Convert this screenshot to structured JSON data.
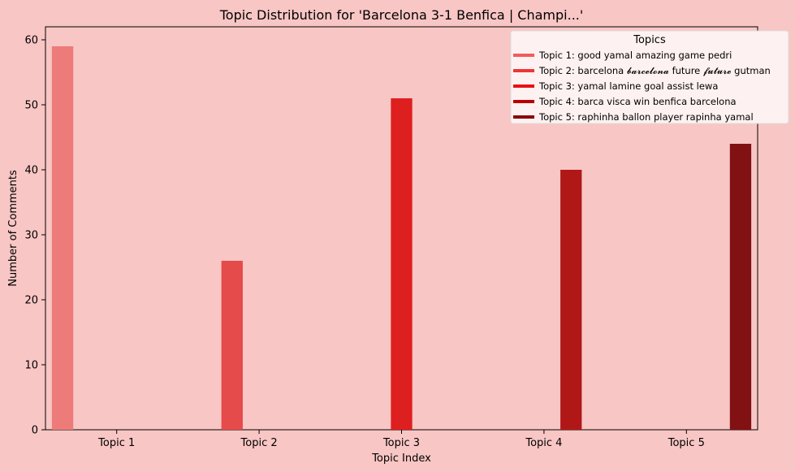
{
  "chart_data": {
    "type": "bar",
    "title": "Topic Distribution for 'Barcelona 3-1 Benfica | Champi...'",
    "xlabel": "Topic Index",
    "ylabel": "Number of Comments",
    "categories": [
      "Topic 1",
      "Topic 2",
      "Topic 3",
      "Topic 4",
      "Topic 5"
    ],
    "values": [
      59,
      26,
      51,
      40,
      44
    ],
    "ylim": [
      0,
      62
    ],
    "yticks": [
      0,
      10,
      20,
      30,
      40,
      50,
      60
    ],
    "grid": false,
    "legend": {
      "title": "Topics",
      "placement": "top-right",
      "entries": [
        "Topic 1: good yamal amazing game pedri",
        "Topic 2: barcelona 𝓫𝓪𝓻𝓬𝓮𝓵𝓸𝓷𝓪 future 𝓯𝓾𝓽𝓾𝓻𝓮 gutman",
        "Topic 3: yamal lamine goal assist lewa",
        "Topic 4: barca visca win benfica barcelona",
        "Topic 5: raphinha ballon player rapinha yamal"
      ]
    },
    "colors": [
      "#ec7b7a",
      "#e64b4b",
      "#de1f1f",
      "#b01818",
      "#811112"
    ]
  },
  "colors": {
    "background": "#f8c6c4",
    "legend_bg": "#fdf1f1",
    "legend_swatches": [
      "#f25c5c",
      "#ee3535",
      "#ec1010",
      "#b80000",
      "#8a0000"
    ]
  }
}
